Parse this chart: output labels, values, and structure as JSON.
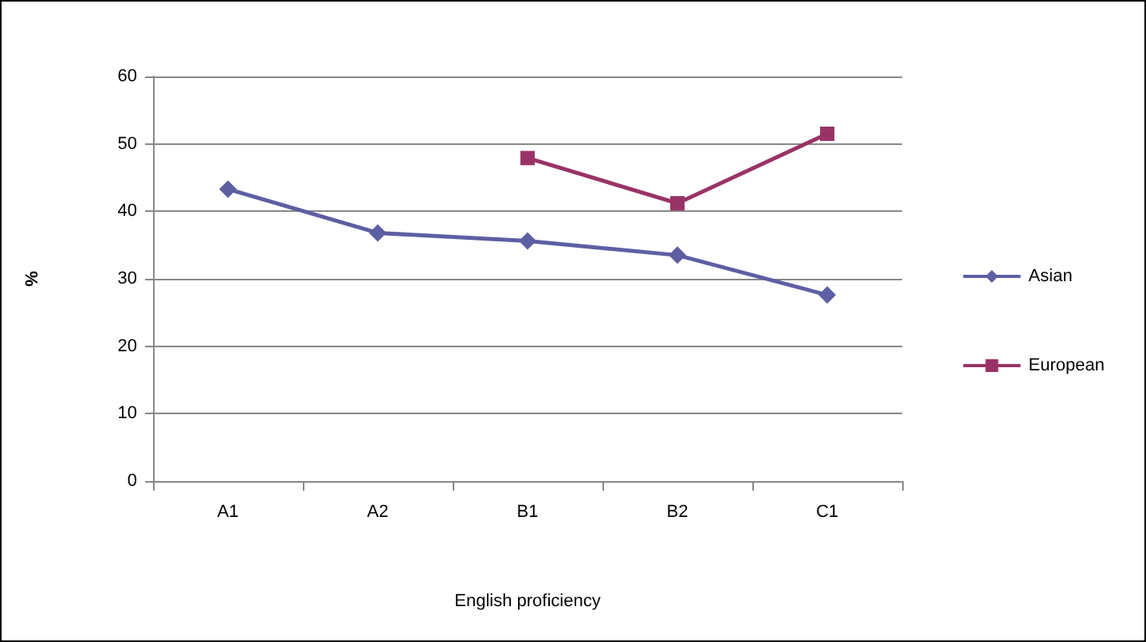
{
  "chart_data": {
    "type": "line",
    "xlabel": "English proficiency",
    "ylabel": "%",
    "categories": [
      "A1",
      "A2",
      "B1",
      "B2",
      "C1"
    ],
    "series": [
      {
        "name": "Asian",
        "color": "#5d5fa3",
        "marker": "diamond",
        "values": [
          43.3,
          36.8,
          35.6,
          33.5,
          27.6
        ]
      },
      {
        "name": "European",
        "color": "#993366",
        "marker": "square",
        "values": [
          null,
          null,
          47.9,
          41.2,
          51.5
        ]
      }
    ],
    "ylim": [
      0,
      60
    ],
    "yticks": [
      0,
      10,
      20,
      30,
      40,
      50,
      60
    ],
    "grid": "y",
    "legend": "right"
  }
}
